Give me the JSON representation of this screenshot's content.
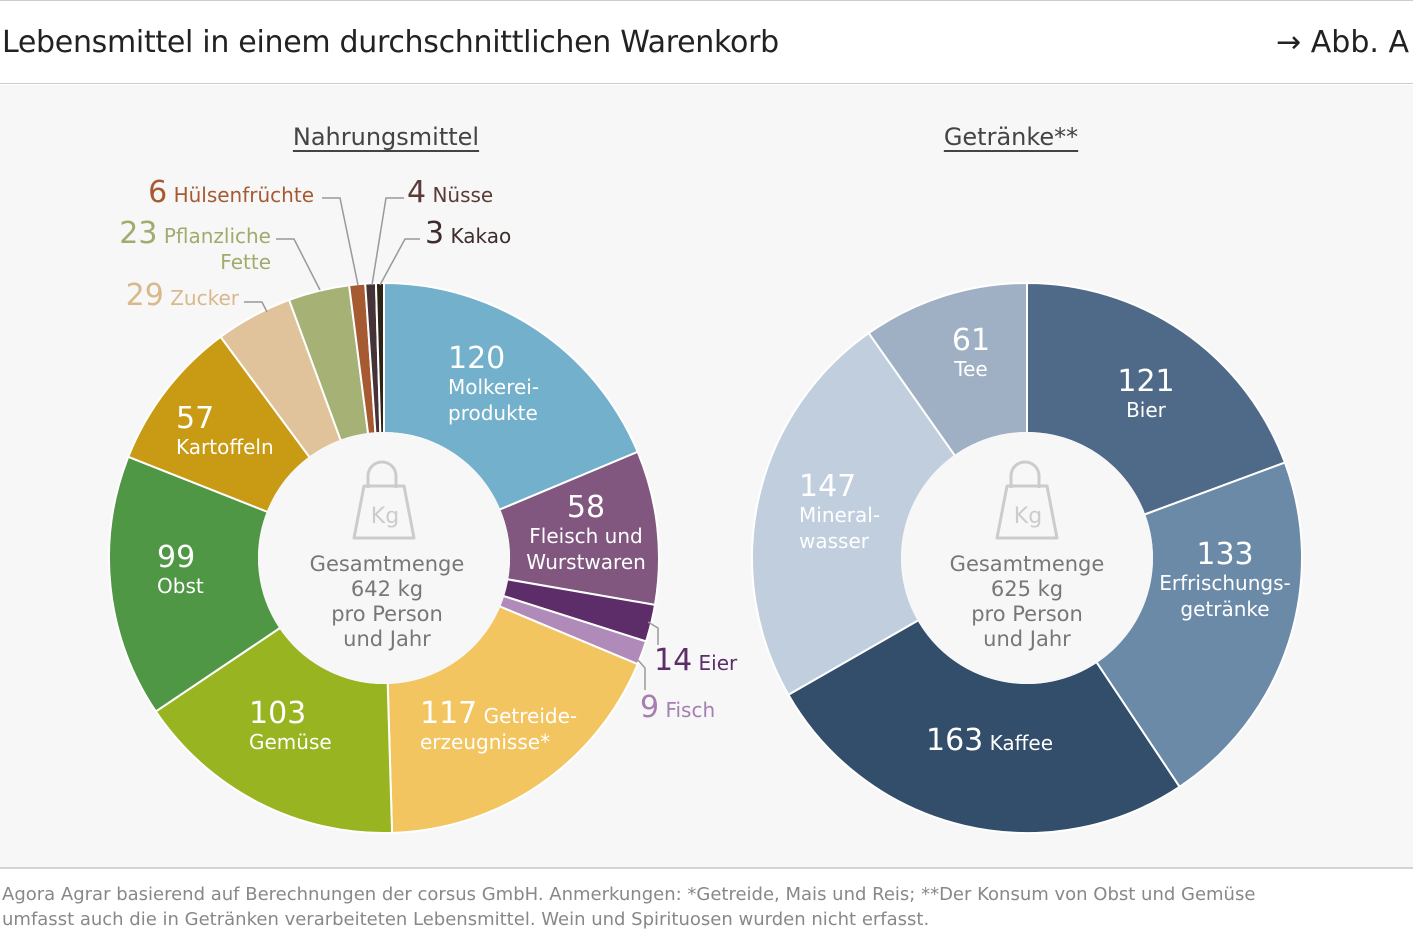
{
  "header": {
    "title": "Lebensmittel in einem durchschnittlichen Warenkorb",
    "figure_ref": "→ Abb. A"
  },
  "chart_data": [
    {
      "type": "pie",
      "subtype": "donut",
      "title": "Nahrungsmittel",
      "unit": "kg",
      "center": {
        "line1": "Gesamtmenge",
        "line2": "642 kg",
        "line3": "pro Person",
        "line4": "und Jahr",
        "icon": "kg-weight-icon"
      },
      "slices": [
        {
          "label": "Molkerei-produkte",
          "l1": "Molkerei-",
          "l2": "produkte",
          "value": 120,
          "color": "#72b0cb"
        },
        {
          "label": "Fleisch und Wurstwaren",
          "l1": "Fleisch und",
          "l2": "Wurstwaren",
          "value": 58,
          "color": "#81567f"
        },
        {
          "label": "Eier",
          "l1": "Eier",
          "value": 14,
          "color": "#5c2d69"
        },
        {
          "label": "Fisch",
          "l1": "Fisch",
          "value": 9,
          "color": "#b08ab8"
        },
        {
          "label": "Getreide-erzeugnisse*",
          "l1": "Getreide-",
          "l2": "erzeugnisse*",
          "value": 117,
          "color": "#f3c561"
        },
        {
          "label": "Gemüse",
          "l1": "Gemüse",
          "value": 103,
          "color": "#98b421"
        },
        {
          "label": "Obst",
          "l1": "Obst",
          "value": 99,
          "color": "#4f9744"
        },
        {
          "label": "Kartoffeln",
          "l1": "Kartoffeln",
          "value": 57,
          "color": "#c99a14"
        },
        {
          "label": "Zucker",
          "l1": "Zucker",
          "value": 29,
          "color": "#e0c39a"
        },
        {
          "label": "Pflanzliche Fette",
          "l1": "Pflanzliche",
          "l2": "Fette",
          "value": 23,
          "color": "#a6b175"
        },
        {
          "label": "Hülsenfrüchte",
          "l1": "Hülsenfrüchte",
          "value": 6,
          "color": "#a55a32"
        },
        {
          "label": "Nüsse",
          "l1": "Nüsse",
          "value": 4,
          "color": "#463338"
        },
        {
          "label": "Kakao",
          "l1": "Kakao",
          "value": 3,
          "color": "#2d2416"
        }
      ]
    },
    {
      "type": "pie",
      "subtype": "donut",
      "title": "Getränke**",
      "unit": "kg",
      "center": {
        "line1": "Gesamtmenge",
        "line2": "625 kg",
        "line3": "pro Person",
        "line4": "und Jahr",
        "icon": "kg-weight-icon"
      },
      "slices": [
        {
          "label": "Bier",
          "l1": "Bier",
          "value": 121,
          "color": "#4f6a88"
        },
        {
          "label": "Erfrischungs-getränke",
          "l1": "Erfrischungs-",
          "l2": "getränke",
          "value": 133,
          "color": "#6b8aa8"
        },
        {
          "label": "Kaffee",
          "l1": "Kaffee",
          "value": 163,
          "color": "#334e6b"
        },
        {
          "label": "Mineral-wasser",
          "l1": "Mineral-",
          "l2": "wasser",
          "value": 147,
          "color": "#c1cedd"
        },
        {
          "label": "Tee",
          "l1": "Tee",
          "value": 61,
          "color": "#9fb0c5"
        }
      ]
    }
  ],
  "footer": {
    "line1": "Agora Agrar basierend auf Berechnungen der corsus GmbH. Anmerkungen: *Getreide, Mais und Reis; **Der Konsum von Obst und Gemüse",
    "line2": "umfasst auch die in Getränken verarbeiteten Lebensmittel. Wein und Spirituosen wurden nicht erfasst."
  }
}
